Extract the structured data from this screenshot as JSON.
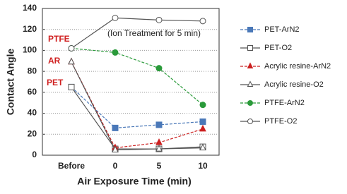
{
  "chart_data": {
    "type": "line",
    "x_label": "Air Exposure Time (min)",
    "y_label": "Contact Angle",
    "categories": [
      "Before",
      "0",
      "5",
      "10"
    ],
    "ylim": [
      0,
      140
    ],
    "yticks": [
      0,
      20,
      40,
      60,
      80,
      100,
      120,
      140
    ],
    "grid": true,
    "legend": "right",
    "annotations": [
      {
        "text": "(Ion Treatment for 5 min)",
        "color": "#222222"
      },
      {
        "text": "PTFE",
        "color": "#d02020"
      },
      {
        "text": "AR",
        "color": "#d02020"
      },
      {
        "text": "PET",
        "color": "#d02020"
      }
    ],
    "series": [
      {
        "name": "PET-ArN2",
        "color": "#4a78b8",
        "marker": "square",
        "filled": true,
        "dashed": true,
        "values": [
          65,
          26,
          29,
          32
        ]
      },
      {
        "name": "PET-O2",
        "color": "#555555",
        "marker": "square",
        "filled": false,
        "dashed": false,
        "values": [
          65,
          6,
          6,
          8
        ]
      },
      {
        "name": "Acrylic resine-ArN2",
        "color": "#cc2020",
        "marker": "triangle",
        "filled": true,
        "dashed": true,
        "values": [
          89,
          7,
          12,
          25
        ]
      },
      {
        "name": "Acrylic resine-O2",
        "color": "#555555",
        "marker": "triangle",
        "filled": false,
        "dashed": false,
        "values": [
          89,
          5,
          6,
          7
        ]
      },
      {
        "name": "PTFE-ArN2",
        "color": "#2a9a3a",
        "marker": "circle",
        "filled": true,
        "dashed": true,
        "values": [
          102,
          98,
          83,
          48
        ]
      },
      {
        "name": "PTFE-O2",
        "color": "#555555",
        "marker": "circle",
        "filled": false,
        "dashed": false,
        "values": [
          102,
          131,
          129,
          128
        ]
      }
    ]
  }
}
